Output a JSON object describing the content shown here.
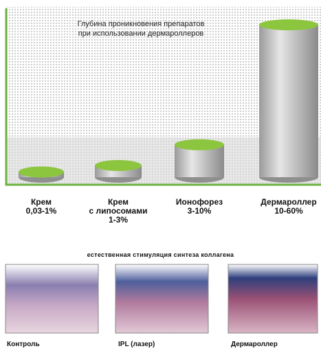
{
  "chart_data": {
    "type": "cylinder",
    "title": "Глубина проникновения препаратов\nпри использовании дермароллеров",
    "categories": [
      "Крем\n0,03-1%",
      "Крем\nс липосомами\n1-3%",
      "Ионофорез\n3-10%",
      "Дермароллер\n10-60%"
    ],
    "values": [
      8,
      18,
      50,
      235
    ],
    "ylim": [
      0,
      250
    ],
    "color": "#8cc63f"
  },
  "figure": {
    "title": "естественная стимуляция синтеза коллагена",
    "captions": [
      "Контроль",
      "IPL (лазер)",
      "Дермароллер"
    ]
  }
}
